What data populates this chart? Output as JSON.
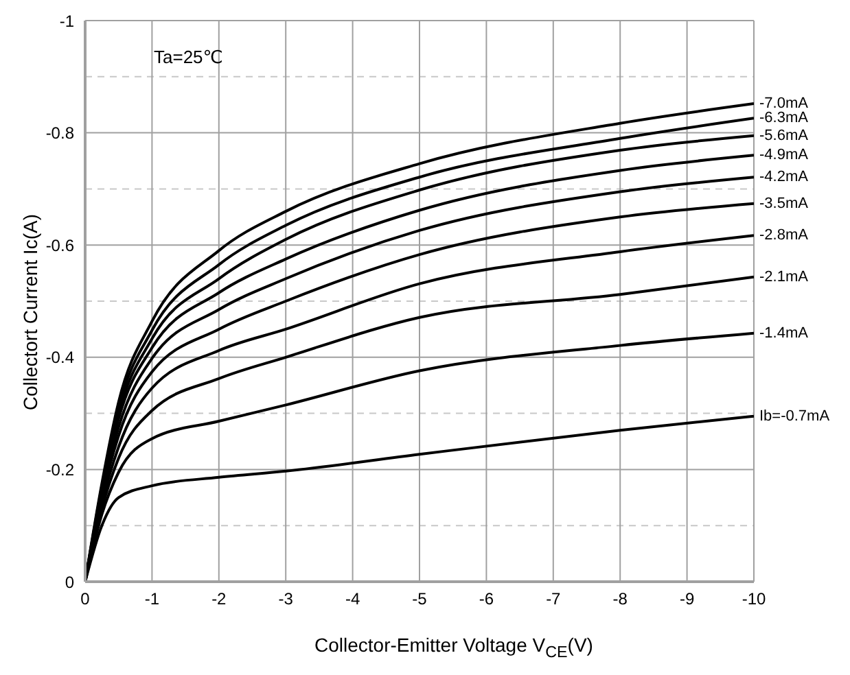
{
  "chart_data": {
    "type": "line",
    "xlabel": "Collector-Emitter Voltage  V$_{CE}$(V)",
    "ylabel": "Collectort Current  Ic(A)",
    "x": [
      0,
      -0.25,
      -0.5,
      -1,
      -2,
      -3,
      -5,
      -8,
      -10
    ],
    "series": [
      {
        "name": "Ib=-0.7mA",
        "color": "#000000",
        "values": [
          0,
          -0.1,
          -0.15,
          -0.171,
          -0.186,
          -0.197,
          -0.227,
          -0.27,
          -0.295
        ]
      },
      {
        "name": "-1.4mA",
        "color": "#000000",
        "values": [
          0,
          -0.12,
          -0.195,
          -0.255,
          -0.286,
          -0.315,
          -0.376,
          -0.421,
          -0.443
        ]
      },
      {
        "name": "-2.1mA",
        "color": "#000000",
        "values": [
          0,
          -0.13,
          -0.22,
          -0.305,
          -0.362,
          -0.4,
          -0.471,
          -0.512,
          -0.543
        ]
      },
      {
        "name": "-2.8mA",
        "color": "#000000",
        "values": [
          0,
          -0.14,
          -0.24,
          -0.345,
          -0.412,
          -0.45,
          -0.531,
          -0.588,
          -0.617
        ]
      },
      {
        "name": "-3.5mA",
        "color": "#000000",
        "values": [
          0,
          -0.15,
          -0.26,
          -0.374,
          -0.45,
          -0.5,
          -0.583,
          -0.65,
          -0.674
        ]
      },
      {
        "name": "-4.2mA",
        "color": "#000000",
        "values": [
          0,
          -0.155,
          -0.275,
          -0.398,
          -0.485,
          -0.54,
          -0.626,
          -0.695,
          -0.721
        ]
      },
      {
        "name": "-4.9mA",
        "color": "#000000",
        "values": [
          0,
          -0.16,
          -0.29,
          -0.417,
          -0.515,
          -0.575,
          -0.662,
          -0.733,
          -0.76
        ]
      },
      {
        "name": "-5.6mA",
        "color": "#000000",
        "values": [
          0,
          -0.165,
          -0.3,
          -0.433,
          -0.54,
          -0.61,
          -0.698,
          -0.769,
          -0.795
        ]
      },
      {
        "name": "-6.3mA",
        "color": "#000000",
        "values": [
          0,
          -0.17,
          -0.31,
          -0.448,
          -0.565,
          -0.635,
          -0.721,
          -0.79,
          -0.826
        ]
      },
      {
        "name": "-7.0mA",
        "color": "#000000",
        "values": [
          0,
          -0.175,
          -0.32,
          -0.464,
          -0.59,
          -0.66,
          -0.745,
          -0.817,
          -0.852
        ]
      }
    ],
    "xlim": [
      0,
      -10
    ],
    "xticks": [
      0,
      -1,
      -2,
      -3,
      -4,
      -5,
      -6,
      -7,
      -8,
      -9,
      -10
    ],
    "ylim": [
      0,
      -1
    ],
    "yticks": [
      0,
      {
        "value": -0.1,
        "label": null
      },
      -0.2,
      {
        "value": -0.3,
        "label": null
      },
      -0.4,
      {
        "value": -0.5,
        "label": null
      },
      -0.6,
      {
        "value": -0.7,
        "label": null
      },
      -0.8,
      {
        "value": -0.9,
        "label": null
      },
      -1
    ],
    "grid": true,
    "marker": "none",
    "line_style": "solid",
    "annotations": [
      "Ta=25℃"
    ]
  }
}
